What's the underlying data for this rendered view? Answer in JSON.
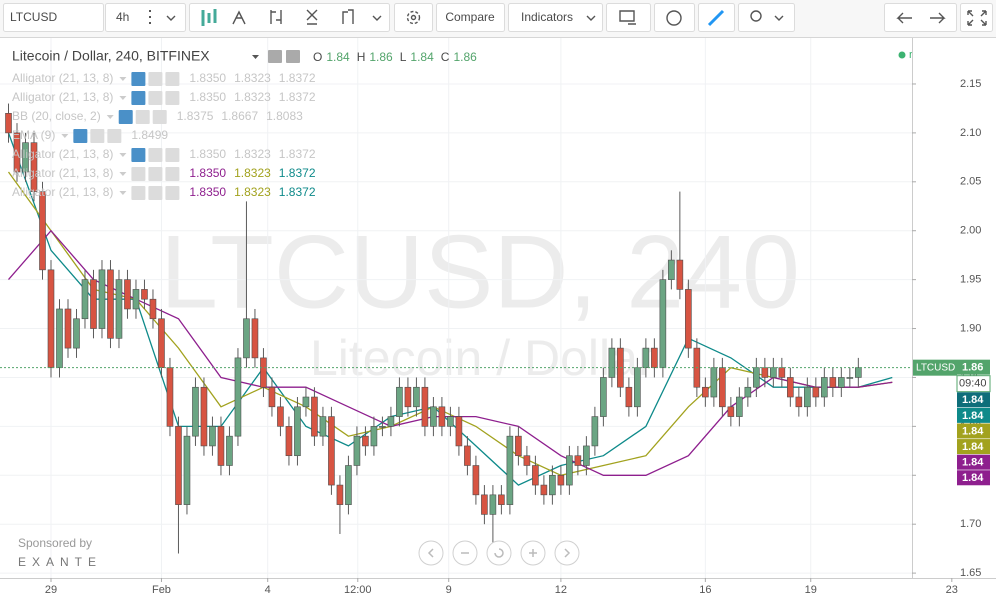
{
  "toolbar": {
    "symbol": "LTCUSD",
    "interval": "4h",
    "compare": "Compare",
    "indicators": "Indicators"
  },
  "chart_data": {
    "type": "candlestick",
    "title": "Litecoin / Dollar, 240, BITFINEX",
    "ohlc_legend": [
      {
        "label": "O",
        "value": 1.84
      },
      {
        "label": "H",
        "value": 1.86
      },
      {
        "label": "L",
        "value": 1.84
      },
      {
        "label": "C",
        "value": 1.86
      }
    ],
    "status": "realtime",
    "watermark": [
      "LTCUSD, 240",
      "Litecoin / Dollar"
    ],
    "indicators": [
      {
        "name": "Alligator (21, 13, 8)",
        "values": [
          "1.8350",
          "1.8323",
          "1.8372"
        ]
      },
      {
        "name": "Alligator (21, 13, 8)",
        "values": [
          "1.8350",
          "1.8323",
          "1.8372"
        ]
      },
      {
        "name": "BB (20, close, 2)",
        "values": [
          "1.8375",
          "1.8667",
          "1.8083"
        ]
      },
      {
        "name": "EMA (9)",
        "values": [
          "1.8499"
        ]
      },
      {
        "name": "Alligator (21, 13, 8)",
        "values": [
          "1.8350",
          "1.8323",
          "1.8372"
        ]
      },
      {
        "name": "Alligator (21, 13, 8)",
        "values": [
          "1.8350",
          "1.8323",
          "1.8372"
        ]
      },
      {
        "name": "Alligator (21, 13, 8)",
        "values": [
          "1.8350",
          "1.8323",
          "1.8372"
        ]
      }
    ],
    "up_color": "#6ba583",
    "down_color": "#d75442",
    "open": [
      2.12,
      2.1,
      2.06,
      2.09,
      2.04,
      1.96,
      1.86,
      1.92,
      1.88,
      1.91,
      1.95,
      1.9,
      1.96,
      1.89,
      1.95,
      1.92,
      1.94,
      1.93,
      1.91,
      1.86,
      1.8,
      1.72,
      1.79,
      1.84,
      1.78,
      1.8,
      1.76,
      1.79,
      1.87,
      1.91,
      1.87,
      1.84,
      1.82,
      1.8,
      1.77,
      1.82,
      1.83,
      1.79,
      1.81,
      1.74,
      1.72,
      1.76,
      1.79,
      1.78,
      1.8,
      1.8,
      1.81,
      1.84,
      1.82,
      1.84,
      1.8,
      1.82,
      1.8,
      1.81,
      1.78,
      1.76,
      1.73,
      1.71,
      1.73,
      1.72,
      1.79,
      1.77,
      1.76,
      1.74,
      1.73,
      1.75,
      1.74,
      1.77,
      1.76,
      1.78,
      1.81,
      1.85,
      1.88,
      1.84,
      1.82,
      1.86,
      1.88,
      1.86,
      1.95,
      1.97,
      1.94,
      1.88,
      1.84,
      1.83,
      1.86,
      1.82,
      1.81,
      1.83,
      1.84,
      1.86,
      1.85,
      1.86,
      1.85,
      1.83,
      1.82,
      1.84,
      1.83,
      1.85,
      1.84,
      1.85,
      1.85
    ],
    "high": [
      2.13,
      2.11,
      2.1,
      2.1,
      2.05,
      1.97,
      1.93,
      1.93,
      1.92,
      1.96,
      1.96,
      1.97,
      1.97,
      1.96,
      1.96,
      1.95,
      1.95,
      1.94,
      1.92,
      1.87,
      1.81,
      1.8,
      1.85,
      1.85,
      1.81,
      1.81,
      1.8,
      1.88,
      2.03,
      1.92,
      1.88,
      1.85,
      1.83,
      1.81,
      1.83,
      1.84,
      1.84,
      1.82,
      1.82,
      1.75,
      1.77,
      1.8,
      1.8,
      1.81,
      1.81,
      1.82,
      1.85,
      1.85,
      1.85,
      1.85,
      1.83,
      1.83,
      1.82,
      1.82,
      1.79,
      1.77,
      1.74,
      1.74,
      1.74,
      1.8,
      1.8,
      1.78,
      1.77,
      1.75,
      1.76,
      1.76,
      1.78,
      1.78,
      1.79,
      1.82,
      1.86,
      1.89,
      1.89,
      1.85,
      1.87,
      1.89,
      1.89,
      1.96,
      1.98,
      2.04,
      1.95,
      1.89,
      1.85,
      1.87,
      1.87,
      1.83,
      1.84,
      1.85,
      1.87,
      1.87,
      1.87,
      1.87,
      1.86,
      1.84,
      1.85,
      1.85,
      1.86,
      1.86,
      1.86,
      1.86,
      1.87
    ],
    "low": [
      2.09,
      2.05,
      2.05,
      2.03,
      1.95,
      1.85,
      1.85,
      1.87,
      1.87,
      1.9,
      1.89,
      1.89,
      1.88,
      1.88,
      1.91,
      1.91,
      1.92,
      1.9,
      1.85,
      1.79,
      1.67,
      1.71,
      1.78,
      1.77,
      1.77,
      1.75,
      1.75,
      1.78,
      1.86,
      1.86,
      1.83,
      1.81,
      1.79,
      1.76,
      1.76,
      1.81,
      1.78,
      1.78,
      1.73,
      1.69,
      1.71,
      1.75,
      1.77,
      1.77,
      1.79,
      1.79,
      1.8,
      1.81,
      1.81,
      1.79,
      1.79,
      1.79,
      1.79,
      1.77,
      1.75,
      1.72,
      1.7,
      1.68,
      1.71,
      1.71,
      1.76,
      1.75,
      1.73,
      1.72,
      1.72,
      1.73,
      1.73,
      1.75,
      1.75,
      1.77,
      1.8,
      1.84,
      1.83,
      1.81,
      1.81,
      1.85,
      1.85,
      1.85,
      1.94,
      1.93,
      1.87,
      1.83,
      1.82,
      1.82,
      1.81,
      1.8,
      1.8,
      1.82,
      1.83,
      1.84,
      1.84,
      1.84,
      1.82,
      1.81,
      1.81,
      1.82,
      1.82,
      1.83,
      1.83,
      1.84,
      1.84
    ],
    "close": [
      2.1,
      2.06,
      2.09,
      2.04,
      1.96,
      1.86,
      1.92,
      1.88,
      1.91,
      1.95,
      1.9,
      1.96,
      1.89,
      1.95,
      1.92,
      1.94,
      1.93,
      1.91,
      1.86,
      1.8,
      1.72,
      1.79,
      1.84,
      1.78,
      1.8,
      1.76,
      1.79,
      1.87,
      1.91,
      1.87,
      1.84,
      1.82,
      1.8,
      1.77,
      1.82,
      1.83,
      1.79,
      1.81,
      1.74,
      1.72,
      1.76,
      1.79,
      1.78,
      1.8,
      1.8,
      1.81,
      1.84,
      1.82,
      1.84,
      1.8,
      1.82,
      1.8,
      1.81,
      1.78,
      1.76,
      1.73,
      1.71,
      1.73,
      1.72,
      1.79,
      1.77,
      1.76,
      1.74,
      1.73,
      1.75,
      1.74,
      1.77,
      1.76,
      1.78,
      1.81,
      1.85,
      1.88,
      1.84,
      1.82,
      1.86,
      1.88,
      1.86,
      1.95,
      1.97,
      1.94,
      1.88,
      1.84,
      1.83,
      1.86,
      1.82,
      1.81,
      1.83,
      1.84,
      1.86,
      1.85,
      1.86,
      1.85,
      1.83,
      1.82,
      1.84,
      1.83,
      1.85,
      1.84,
      1.85,
      1.85,
      1.86
    ],
    "series": [
      {
        "color": "#0e8a8a",
        "x": [
          0,
          5,
          10,
          15,
          20,
          25,
          30,
          35,
          40,
          45,
          50,
          55,
          60,
          65,
          70,
          75,
          80,
          85,
          90,
          95,
          100,
          104
        ],
        "values": [
          2.1,
          1.98,
          1.93,
          1.93,
          1.8,
          1.8,
          1.86,
          1.8,
          1.78,
          1.81,
          1.82,
          1.78,
          1.74,
          1.76,
          1.77,
          1.8,
          1.89,
          1.87,
          1.84,
          1.84,
          1.84,
          1.85
        ]
      },
      {
        "color": "#a2a21e",
        "x": [
          0,
          5,
          10,
          15,
          20,
          25,
          30,
          35,
          40,
          45,
          50,
          55,
          60,
          65,
          70,
          75,
          80,
          85,
          90,
          95,
          100,
          104
        ],
        "values": [
          2.06,
          2.0,
          1.94,
          1.93,
          1.88,
          1.82,
          1.84,
          1.82,
          1.79,
          1.8,
          1.82,
          1.8,
          1.77,
          1.75,
          1.76,
          1.77,
          1.82,
          1.86,
          1.85,
          1.84,
          1.84,
          1.845
        ]
      },
      {
        "color": "#8e1f8e",
        "x": [
          0,
          5,
          10,
          15,
          20,
          25,
          30,
          35,
          40,
          45,
          50,
          55,
          60,
          65,
          70,
          75,
          80,
          85,
          90,
          95,
          100,
          104
        ],
        "values": [
          1.95,
          2.0,
          1.95,
          1.93,
          1.91,
          1.85,
          1.84,
          1.84,
          1.82,
          1.8,
          1.81,
          1.81,
          1.8,
          1.77,
          1.75,
          1.75,
          1.77,
          1.82,
          1.85,
          1.84,
          1.84,
          1.845
        ]
      }
    ],
    "xlim": [
      -1,
      116.2
    ],
    "xticks": [
      {
        "value": 5,
        "label": "29"
      },
      {
        "value": 18,
        "label": "Feb"
      },
      {
        "value": 30.5,
        "label": "4"
      },
      {
        "value": 41.1,
        "label": "12:00"
      },
      {
        "value": 51.8,
        "label": "9"
      },
      {
        "value": 65,
        "label": "12"
      },
      {
        "value": 82,
        "label": "16"
      },
      {
        "value": 94.4,
        "label": "19"
      },
      {
        "value": 111,
        "label": "23"
      }
    ],
    "ylim": [
      1.645,
      2.197
    ],
    "yticks": [
      {
        "value": 1.65,
        "label": "1.65"
      },
      {
        "value": 1.7,
        "label": "1.70"
      },
      {
        "value": 1.75,
        "label": "1.75"
      },
      {
        "value": 1.8,
        "label": "1.80"
      },
      {
        "value": 1.85,
        "label": "1.85"
      },
      {
        "value": 1.9,
        "label": "1.90"
      },
      {
        "value": 1.95,
        "label": "1.95"
      },
      {
        "value": 2.0,
        "label": "2.00"
      },
      {
        "value": 2.05,
        "label": "2.05"
      },
      {
        "value": 2.1,
        "label": "2.10"
      },
      {
        "value": 2.15,
        "label": "2.15"
      }
    ],
    "grid": true,
    "price_label": "LTCUSD",
    "countdown": "09:40",
    "price_badges": [
      {
        "value": 1.86,
        "color": "#53a46b"
      },
      {
        "value": 1.84,
        "color": "#0e6e7a"
      },
      {
        "value": 1.84,
        "color": "#0e8a8a"
      },
      {
        "value": 1.84,
        "color": "#a2a21e"
      },
      {
        "value": 1.84,
        "color": "#a2a21e"
      },
      {
        "value": 1.84,
        "color": "#8e1f8e"
      },
      {
        "value": 1.84,
        "color": "#8e1f8e"
      }
    ]
  },
  "sponsor": {
    "text": "Sponsored by",
    "brand": "EXANTE"
  }
}
